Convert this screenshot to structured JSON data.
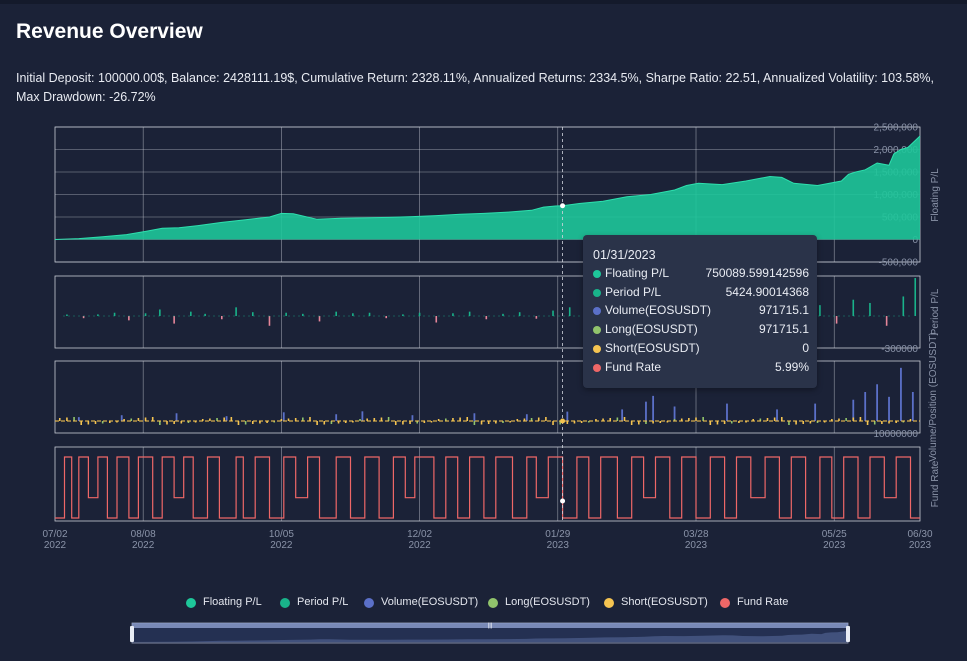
{
  "title": "Revenue Overview",
  "stats": "Initial Deposit: 100000.00$, Balance: 2428111.19$, Cumulative Return: 2328.11%, Annualized Returns: 2334.5%, Sharpe Ratio: 22.51, Annualized Volatility: 103.58%, Max Drawdown: -26.72%",
  "colors": {
    "background": "#1b2237",
    "floating": "#1ec79a",
    "period": "#19b38a",
    "volume": "#5b70c8",
    "long": "#91c46c",
    "short": "#f5c451",
    "fund_rate": "#ee6767",
    "negative": "#e6869a"
  },
  "tooltip": {
    "date": "01/31/2023",
    "rows": [
      {
        "label": "Floating P/L",
        "value": "750089.599142596",
        "color": "#1ec79a"
      },
      {
        "label": "Period P/L",
        "value": "5424.90014368",
        "color": "#19b38a"
      },
      {
        "label": "Volume(EOSUSDT)",
        "value": "971715.1",
        "color": "#5b70c8"
      },
      {
        "label": "Long(EOSUSDT)",
        "value": "971715.1",
        "color": "#91c46c"
      },
      {
        "label": "Short(EOSUSDT)",
        "value": "0",
        "color": "#f5c451"
      },
      {
        "label": "Fund Rate",
        "value": "5.99%",
        "color": "#ee6767"
      }
    ]
  },
  "legend": [
    {
      "label": "Floating P/L",
      "color": "#1ec79a"
    },
    {
      "label": "Period P/L",
      "color": "#19b38a"
    },
    {
      "label": "Volume(EOSUSDT)",
      "color": "#5b70c8"
    },
    {
      "label": "Long(EOSUSDT)",
      "color": "#91c46c"
    },
    {
      "label": "Short(EOSUSDT)",
      "color": "#f5c451"
    },
    {
      "label": "Fund Rate",
      "color": "#ee6767"
    }
  ],
  "chart_data": [
    {
      "type": "area",
      "ylabel": "Floating P/L",
      "ylim": [
        -500000,
        2500000
      ],
      "yticks": [
        "2,500,000",
        "2,000,000",
        "1,500,000",
        "1,000,000",
        "500,000",
        "0",
        "-500,000"
      ],
      "x_date_labels": [
        {
          "day": "07/02",
          "year": "2022",
          "t": 0
        },
        {
          "day": "08/08",
          "year": "2022",
          "t": 37
        },
        {
          "day": "10/05",
          "year": "2022",
          "t": 95
        },
        {
          "day": "12/02",
          "year": "2022",
          "t": 153
        },
        {
          "day": "01/29",
          "year": "2023",
          "t": 211
        },
        {
          "day": "03/28",
          "year": "2023",
          "t": 269
        },
        {
          "day": "05/25",
          "year": "2023",
          "t": 327
        },
        {
          "day": "06/30",
          "year": "2023",
          "t": 363
        }
      ],
      "x": [
        0,
        10,
        20,
        30,
        38,
        45,
        52,
        60,
        70,
        80,
        90,
        95,
        100,
        110,
        120,
        130,
        140,
        150,
        160,
        170,
        180,
        190,
        200,
        205,
        210,
        213,
        220,
        230,
        240,
        250,
        260,
        265,
        270,
        280,
        290,
        300,
        305,
        310,
        320,
        330,
        333,
        336,
        340,
        345,
        350,
        352,
        355,
        358,
        360,
        363
      ],
      "values": [
        0,
        20000,
        60000,
        110000,
        180000,
        250000,
        260000,
        310000,
        380000,
        440000,
        500000,
        580000,
        570000,
        450000,
        470000,
        480000,
        490000,
        510000,
        530000,
        560000,
        580000,
        610000,
        650000,
        720000,
        745000,
        750000,
        800000,
        850000,
        950000,
        1000000,
        1100000,
        1200000,
        1250000,
        1220000,
        1300000,
        1400000,
        1380000,
        1250000,
        1200000,
        1300000,
        1450000,
        1500000,
        1550000,
        1700000,
        1650000,
        1900000,
        2000000,
        2050000,
        2150000,
        2300000
      ]
    },
    {
      "type": "bar",
      "ylabel": "Period P/L",
      "yticks": [
        "-300000"
      ],
      "series": [
        {
          "name": "Period P/L",
          "x": [
            5,
            12,
            18,
            25,
            31,
            38,
            44,
            50,
            57,
            63,
            70,
            76,
            83,
            90,
            97,
            104,
            111,
            118,
            125,
            132,
            139,
            146,
            153,
            160,
            167,
            174,
            181,
            188,
            195,
            202,
            209,
            216,
            223,
            230,
            237,
            244,
            251,
            258,
            265,
            272,
            279,
            286,
            293,
            300,
            307,
            314,
            321,
            328,
            335,
            342,
            349,
            356,
            361
          ],
          "values": [
            5000,
            -20000,
            15000,
            30000,
            -40000,
            25000,
            60000,
            -70000,
            40000,
            20000,
            -30000,
            80000,
            35000,
            -90000,
            30000,
            20000,
            -50000,
            40000,
            25000,
            30000,
            -20000,
            15000,
            30000,
            -60000,
            25000,
            40000,
            -30000,
            20000,
            35000,
            -25000,
            50000,
            80000,
            -40000,
            120000,
            30000,
            -50000,
            45000,
            60000,
            -35000,
            40000,
            70000,
            -30000,
            50000,
            90000,
            -45000,
            60000,
            100000,
            -70000,
            150000,
            120000,
            -90000,
            180000,
            350000
          ]
        }
      ]
    },
    {
      "type": "bar",
      "ylabel": "Volume/Position (EOSUSDT)",
      "yticks": [
        "10000000"
      ],
      "series": [
        {
          "name": "Volume(EOSUSDT)",
          "values_note": "per-day volume"
        },
        {
          "name": "Long(EOSUSDT)"
        },
        {
          "name": "Short(EOSUSDT)"
        }
      ],
      "volume_x": [
        10,
        28,
        51,
        72,
        96,
        118,
        129,
        150,
        176,
        198,
        215,
        238,
        248,
        251,
        260,
        282,
        303,
        319,
        335,
        340,
        345,
        350,
        355,
        360
      ],
      "volume_values": [
        400000,
        600000,
        800000,
        500000,
        900000,
        700000,
        1000000,
        600000,
        800000,
        700000,
        971715,
        1200000,
        2000000,
        2600000,
        1500000,
        1800000,
        1200000,
        1800000,
        2200000,
        3000000,
        3800000,
        2500000,
        5500000,
        3000000
      ]
    },
    {
      "type": "line",
      "ylabel": "Fund Rate",
      "segments_note": "step function switching between 0% and ~6%",
      "high_value": 5.99,
      "x": [
        0,
        4,
        4,
        7,
        7,
        10,
        10,
        14,
        14,
        18,
        18,
        22,
        22,
        26,
        26,
        31,
        31,
        35,
        35,
        41,
        41,
        45,
        45,
        50,
        50,
        54,
        54,
        58,
        58,
        64,
        64,
        69,
        69,
        76,
        76,
        79,
        79,
        84,
        84,
        90,
        90,
        96,
        96,
        101,
        101,
        106,
        106,
        111,
        111,
        118,
        118,
        124,
        124,
        130,
        130,
        136,
        136,
        142,
        142,
        147,
        147,
        151,
        151,
        159,
        159,
        164,
        164,
        169,
        169,
        174,
        174,
        180,
        180,
        185,
        185,
        192,
        192,
        198,
        198,
        202,
        202,
        207,
        207,
        213,
        213,
        219,
        219,
        224,
        224,
        229,
        229,
        236,
        236,
        242,
        242,
        247,
        247,
        252,
        252,
        258,
        258,
        263,
        263,
        269,
        269,
        275,
        275,
        281,
        281,
        286,
        286,
        292,
        292,
        298,
        298,
        304,
        304,
        309,
        309,
        315,
        315,
        321,
        321,
        326,
        326,
        331,
        331,
        337,
        337,
        342,
        342,
        348,
        348,
        353,
        353,
        359,
        359,
        363
      ],
      "values": [
        0,
        0,
        6,
        6,
        0,
        0,
        6,
        6,
        2,
        2,
        6,
        6,
        0,
        0,
        6,
        6,
        0,
        0,
        6,
        6,
        0,
        0,
        6,
        6,
        2,
        2,
        6,
        6,
        0,
        0,
        6,
        6,
        0,
        0,
        6,
        6,
        0,
        0,
        6,
        6,
        0,
        0,
        6,
        6,
        2,
        2,
        6,
        6,
        0,
        0,
        6,
        6,
        0,
        0,
        6,
        6,
        0,
        0,
        6,
        6,
        2,
        2,
        6,
        6,
        0,
        0,
        6,
        6,
        0,
        0,
        6,
        6,
        0,
        0,
        6,
        6,
        0,
        0,
        6,
        6,
        2,
        2,
        6,
        6,
        0,
        0,
        6,
        6,
        0,
        0,
        6,
        6,
        0,
        0,
        6,
        6,
        2,
        2,
        6,
        6,
        0,
        0,
        6,
        6,
        0,
        0,
        6,
        6,
        0,
        0,
        6,
        6,
        2,
        2,
        6,
        6,
        0,
        0,
        6,
        6,
        0,
        0,
        6,
        6,
        0,
        0,
        6,
        6,
        0,
        0,
        6,
        6,
        2,
        2,
        6,
        6,
        0,
        0
      ]
    }
  ]
}
